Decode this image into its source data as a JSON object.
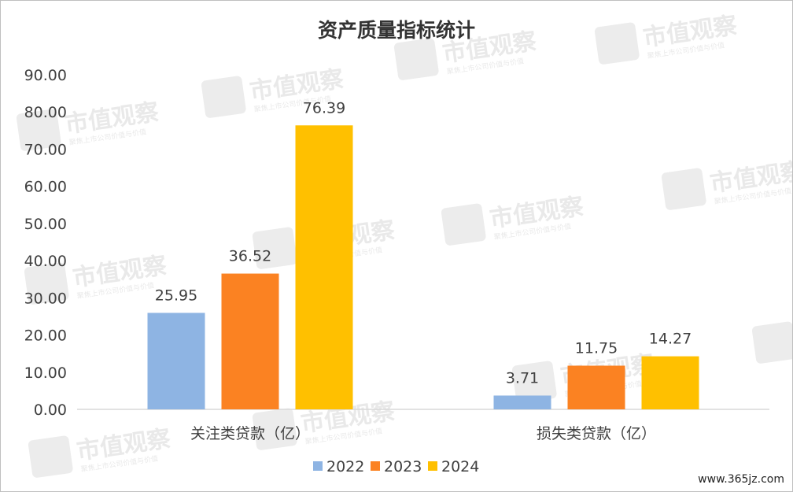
{
  "chart_data": {
    "type": "bar",
    "title": "资产质量指标统计",
    "categories": [
      "关注类贷款（亿）",
      "损失类贷款（亿）"
    ],
    "series": [
      {
        "name": "2022",
        "color": "#8eb4e3",
        "values": [
          25.95,
          3.71
        ]
      },
      {
        "name": "2023",
        "color": "#fb8222",
        "values": [
          36.52,
          11.75
        ]
      },
      {
        "name": "2024",
        "color": "#ffc000",
        "values": [
          76.39,
          14.27
        ]
      }
    ],
    "ylim": [
      0,
      90
    ],
    "yticks": [
      "0.00",
      "10.00",
      "20.00",
      "30.00",
      "40.00",
      "50.00",
      "60.00",
      "70.00",
      "80.00",
      "90.00"
    ],
    "legend_position": "bottom",
    "grid": false
  },
  "watermark": {
    "text": "市值观察",
    "subtext": "聚焦上市公司价值与价值"
  },
  "footer": {
    "site": "www.365jz.com"
  }
}
